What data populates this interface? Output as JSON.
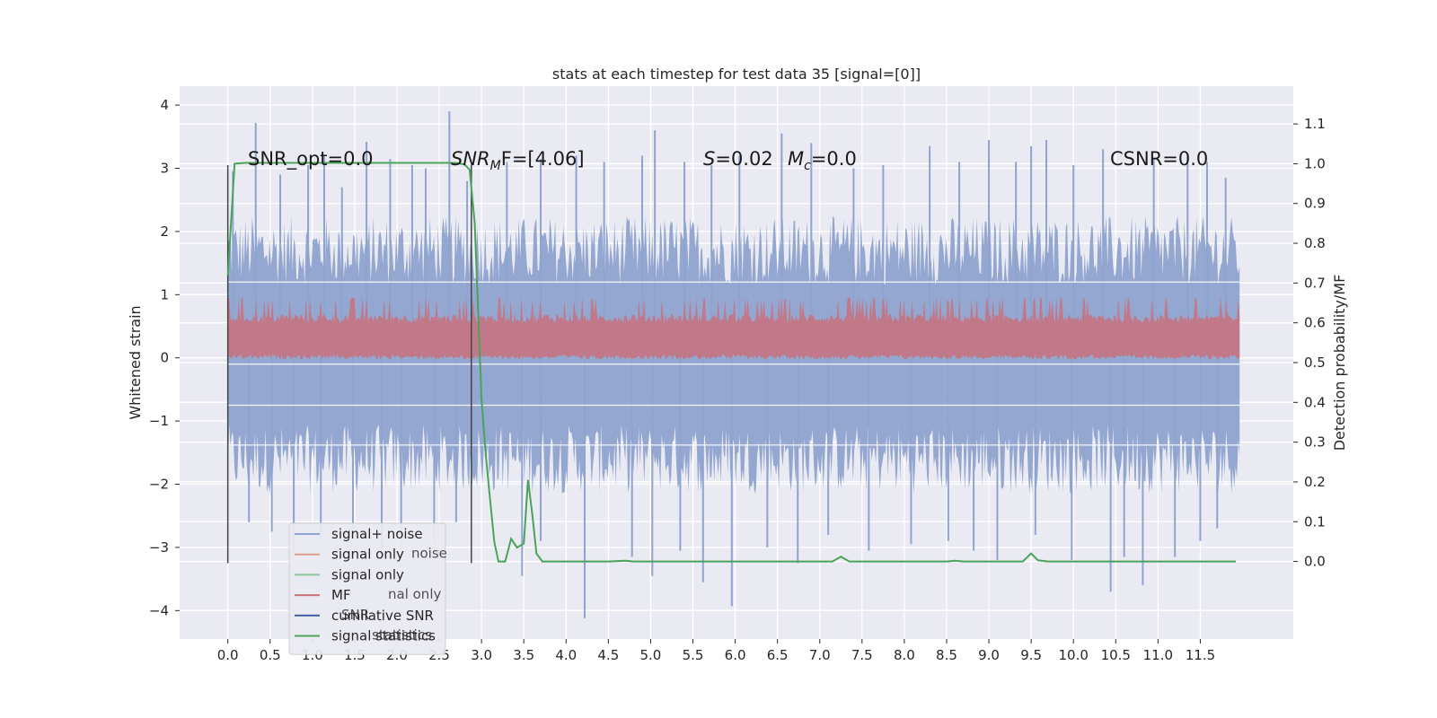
{
  "chart_data": {
    "type": "line",
    "title": "stats at each timestep for test data 35 [signal=[0]]",
    "xlabel": "",
    "ylabel": "Whitened strain",
    "ylabel_right": "Detection probability/MF",
    "xlim": [
      -0.57,
      12.6
    ],
    "ylim_left": [
      -4.45,
      4.3
    ],
    "ylim_right": [
      -0.195,
      1.195
    ],
    "x_ticks": [
      0.0,
      0.5,
      1.0,
      1.5,
      2.0,
      2.5,
      3.0,
      3.5,
      4.0,
      4.5,
      5.0,
      5.5,
      6.0,
      6.5,
      7.0,
      7.5,
      8.0,
      8.5,
      9.0,
      9.5,
      10.0,
      10.5,
      11.0,
      11.5
    ],
    "y_ticks_left": [
      -4,
      -3,
      -2,
      -1,
      0,
      1,
      2,
      3,
      4
    ],
    "y_ticks_left_labels": [
      "−4",
      "−3",
      "−2",
      "−1",
      "0",
      "1",
      "2",
      "3",
      "4"
    ],
    "y_ticks_right": [
      0.0,
      0.1,
      0.2,
      0.3,
      0.4,
      0.5,
      0.6,
      0.7,
      0.8,
      0.9,
      1.0,
      1.1
    ],
    "annotations": {
      "snr_opt": "SNR_opt=0.0",
      "snr_mf_prefix": "SNR",
      "snr_mf_sub": "M",
      "snr_mf_suffix": "F=[4.06]",
      "s_stat": "=0.02",
      "s_var": "S",
      "mc_var": "M",
      "mc_sub": "c",
      "mc_stat": "=0.0",
      "csnr": "CSNR=0.0"
    },
    "legend": [
      {
        "label": "signal+ noise",
        "color": "#8fa3cf"
      },
      {
        "label": "signal only",
        "color": "#dd9f8a"
      },
      {
        "label": "signal only",
        "color": "#8fc59c"
      },
      {
        "label": "MF",
        "color": "#c9707b"
      },
      {
        "label": "cumilative SNR",
        "color": "#3b5ea0"
      },
      {
        "label": "signal statistics",
        "color": "#4aa35a"
      }
    ],
    "legend_ghost": [
      "noise",
      "nal only",
      "SNR",
      "statistics"
    ],
    "legend_position": "lower-left",
    "grid": true,
    "colors": {
      "background": "#eaeaf2",
      "grid": "#ffffff",
      "noise": "#8fa3cf",
      "mf": "#c9707b",
      "stat": "#4aa35a",
      "vline": "#444444"
    },
    "noise_band": {
      "x_start": 0.0,
      "x_end": 11.98,
      "upper_typical": 1.7,
      "lower_typical": -1.6,
      "center": 0.0
    },
    "noise_spikes_up": [
      [
        0.06,
        2.95
      ],
      [
        0.33,
        3.72
      ],
      [
        0.62,
        2.9
      ],
      [
        0.95,
        3.05
      ],
      [
        1.14,
        3.2
      ],
      [
        1.35,
        2.7
      ],
      [
        1.64,
        3.42
      ],
      [
        1.92,
        3.15
      ],
      [
        2.18,
        3.05
      ],
      [
        2.34,
        3.0
      ],
      [
        2.62,
        3.9
      ],
      [
        2.83,
        2.8
      ],
      [
        3.3,
        3.1
      ],
      [
        3.7,
        3.15
      ],
      [
        4.12,
        3.2
      ],
      [
        4.45,
        3.1
      ],
      [
        4.9,
        3.2
      ],
      [
        5.05,
        3.6
      ],
      [
        5.4,
        3.1
      ],
      [
        5.72,
        3.05
      ],
      [
        6.05,
        3.2
      ],
      [
        6.55,
        3.55
      ],
      [
        6.9,
        3.4
      ],
      [
        7.4,
        3.0
      ],
      [
        7.75,
        3.05
      ],
      [
        8.3,
        3.35
      ],
      [
        8.65,
        3.1
      ],
      [
        9.0,
        3.45
      ],
      [
        9.32,
        3.1
      ],
      [
        9.5,
        3.35
      ],
      [
        9.68,
        3.45
      ],
      [
        10.0,
        3.05
      ],
      [
        10.35,
        3.3
      ],
      [
        10.95,
        3.15
      ],
      [
        11.35,
        3.2
      ],
      [
        11.58,
        3.1
      ],
      [
        11.8,
        2.85
      ]
    ],
    "noise_spikes_down": [
      [
        0.25,
        -2.6
      ],
      [
        0.52,
        -2.75
      ],
      [
        0.78,
        -3.1
      ],
      [
        1.1,
        -2.85
      ],
      [
        1.48,
        -2.7
      ],
      [
        1.82,
        -3.05
      ],
      [
        2.05,
        -2.95
      ],
      [
        2.44,
        -2.9
      ],
      [
        2.7,
        -2.6
      ],
      [
        3.48,
        -3.45
      ],
      [
        3.7,
        -2.9
      ],
      [
        4.22,
        -4.12
      ],
      [
        4.78,
        -3.15
      ],
      [
        5.02,
        -3.45
      ],
      [
        5.35,
        -3.05
      ],
      [
        5.62,
        -3.55
      ],
      [
        5.96,
        -3.93
      ],
      [
        6.38,
        -3.0
      ],
      [
        6.74,
        -3.25
      ],
      [
        7.1,
        -2.8
      ],
      [
        7.58,
        -3.05
      ],
      [
        8.08,
        -2.95
      ],
      [
        8.52,
        -2.9
      ],
      [
        8.82,
        -3.05
      ],
      [
        9.1,
        -3.2
      ],
      [
        9.55,
        -2.8
      ],
      [
        9.98,
        -3.2
      ],
      [
        10.44,
        -3.7
      ],
      [
        10.6,
        -3.15
      ],
      [
        10.82,
        -3.6
      ],
      [
        11.2,
        -3.15
      ],
      [
        11.5,
        -2.9
      ],
      [
        11.7,
        -2.7
      ]
    ],
    "mf_band": {
      "x_start": 0.0,
      "x_end": 11.98,
      "lower": 0.52,
      "upper": 0.6,
      "peak": 0.665
    },
    "signal_statistics": {
      "x": [
        0.0,
        0.08,
        0.2,
        0.5,
        1.0,
        1.5,
        2.0,
        2.5,
        2.7,
        2.8,
        2.86,
        2.92,
        3.0,
        3.05,
        3.1,
        3.15,
        3.2,
        3.28,
        3.35,
        3.42,
        3.5,
        3.55,
        3.6,
        3.65,
        3.72,
        4.0,
        4.5,
        4.7,
        4.8,
        5.0,
        6.0,
        7.0,
        7.15,
        7.25,
        7.35,
        8.0,
        8.5,
        8.6,
        8.7,
        9.0,
        9.4,
        9.5,
        9.58,
        9.7,
        10.0,
        11.0,
        11.5,
        11.8,
        11.92
      ],
      "y": [
        0.72,
        1.0,
        1.002,
        1.002,
        1.002,
        1.002,
        1.002,
        1.002,
        1.002,
        0.998,
        0.985,
        0.85,
        0.41,
        0.27,
        0.16,
        0.05,
        0.0,
        0.0,
        0.057,
        0.035,
        0.045,
        0.205,
        0.12,
        0.02,
        0.0,
        0.0,
        0.0,
        0.002,
        0.0,
        0.0,
        0.0,
        0.0,
        0.0,
        0.012,
        0.0,
        0.0,
        0.0,
        0.002,
        0.0,
        0.0,
        0.0,
        0.02,
        0.003,
        0.0,
        0.0,
        0.0,
        0.0,
        0.0,
        0.0
      ]
    },
    "vertical_markers": [
      {
        "x": 0.0,
        "y1": -3.25,
        "y2": 3.05
      },
      {
        "x": 2.88,
        "y1": -3.25,
        "y2": 3.05
      }
    ]
  }
}
